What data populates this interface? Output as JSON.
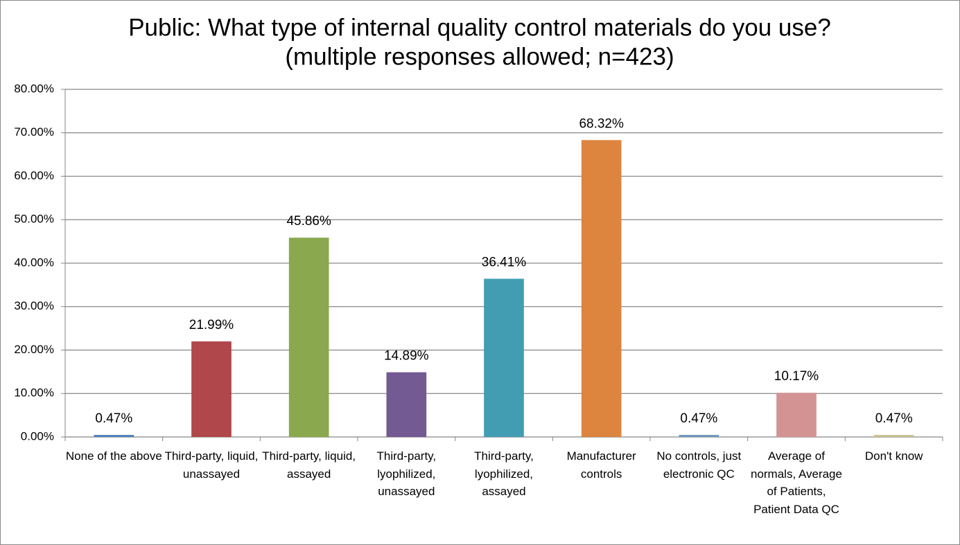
{
  "chart_data": {
    "type": "bar",
    "title": "Public: What type of internal quality control materials do you use?",
    "subtitle": "(multiple responses allowed; n=423)",
    "categories": [
      "None of the above",
      "Third-party, liquid, unassayed",
      "Third-party, liquid, assayed",
      "Third-party, lyophilized, unassayed",
      "Third-party, lyophilized, assayed",
      "Manufacturer controls",
      "No controls, just electronic QC",
      "Average of normals, Average of Patients, Patient Data QC",
      "Don't know"
    ],
    "values": [
      0.47,
      21.99,
      45.86,
      14.89,
      36.41,
      68.32,
      0.47,
      10.17,
      0.47
    ],
    "value_labels": [
      "0.47%",
      "21.99%",
      "45.86%",
      "14.89%",
      "36.41%",
      "68.32%",
      "0.47%",
      "10.17%",
      "0.47%"
    ],
    "colors": [
      "#4f81bd",
      "#b0474a",
      "#8aa84d",
      "#735a93",
      "#429db3",
      "#dd843f",
      "#6e96c0",
      "#d49393",
      "#c7c48f"
    ],
    "ylim": [
      0,
      80
    ],
    "yticks": [
      {
        "value": 0,
        "label": "0.00%"
      },
      {
        "value": 10,
        "label": "10.00%"
      },
      {
        "value": 20,
        "label": "20.00%"
      },
      {
        "value": 30,
        "label": "30.00%"
      },
      {
        "value": 40,
        "label": "40.00%"
      },
      {
        "value": 50,
        "label": "50.00%"
      },
      {
        "value": 60,
        "label": "60.00%"
      },
      {
        "value": 70,
        "label": "70.00%"
      },
      {
        "value": 80,
        "label": "80.00%"
      }
    ],
    "grid": true
  }
}
